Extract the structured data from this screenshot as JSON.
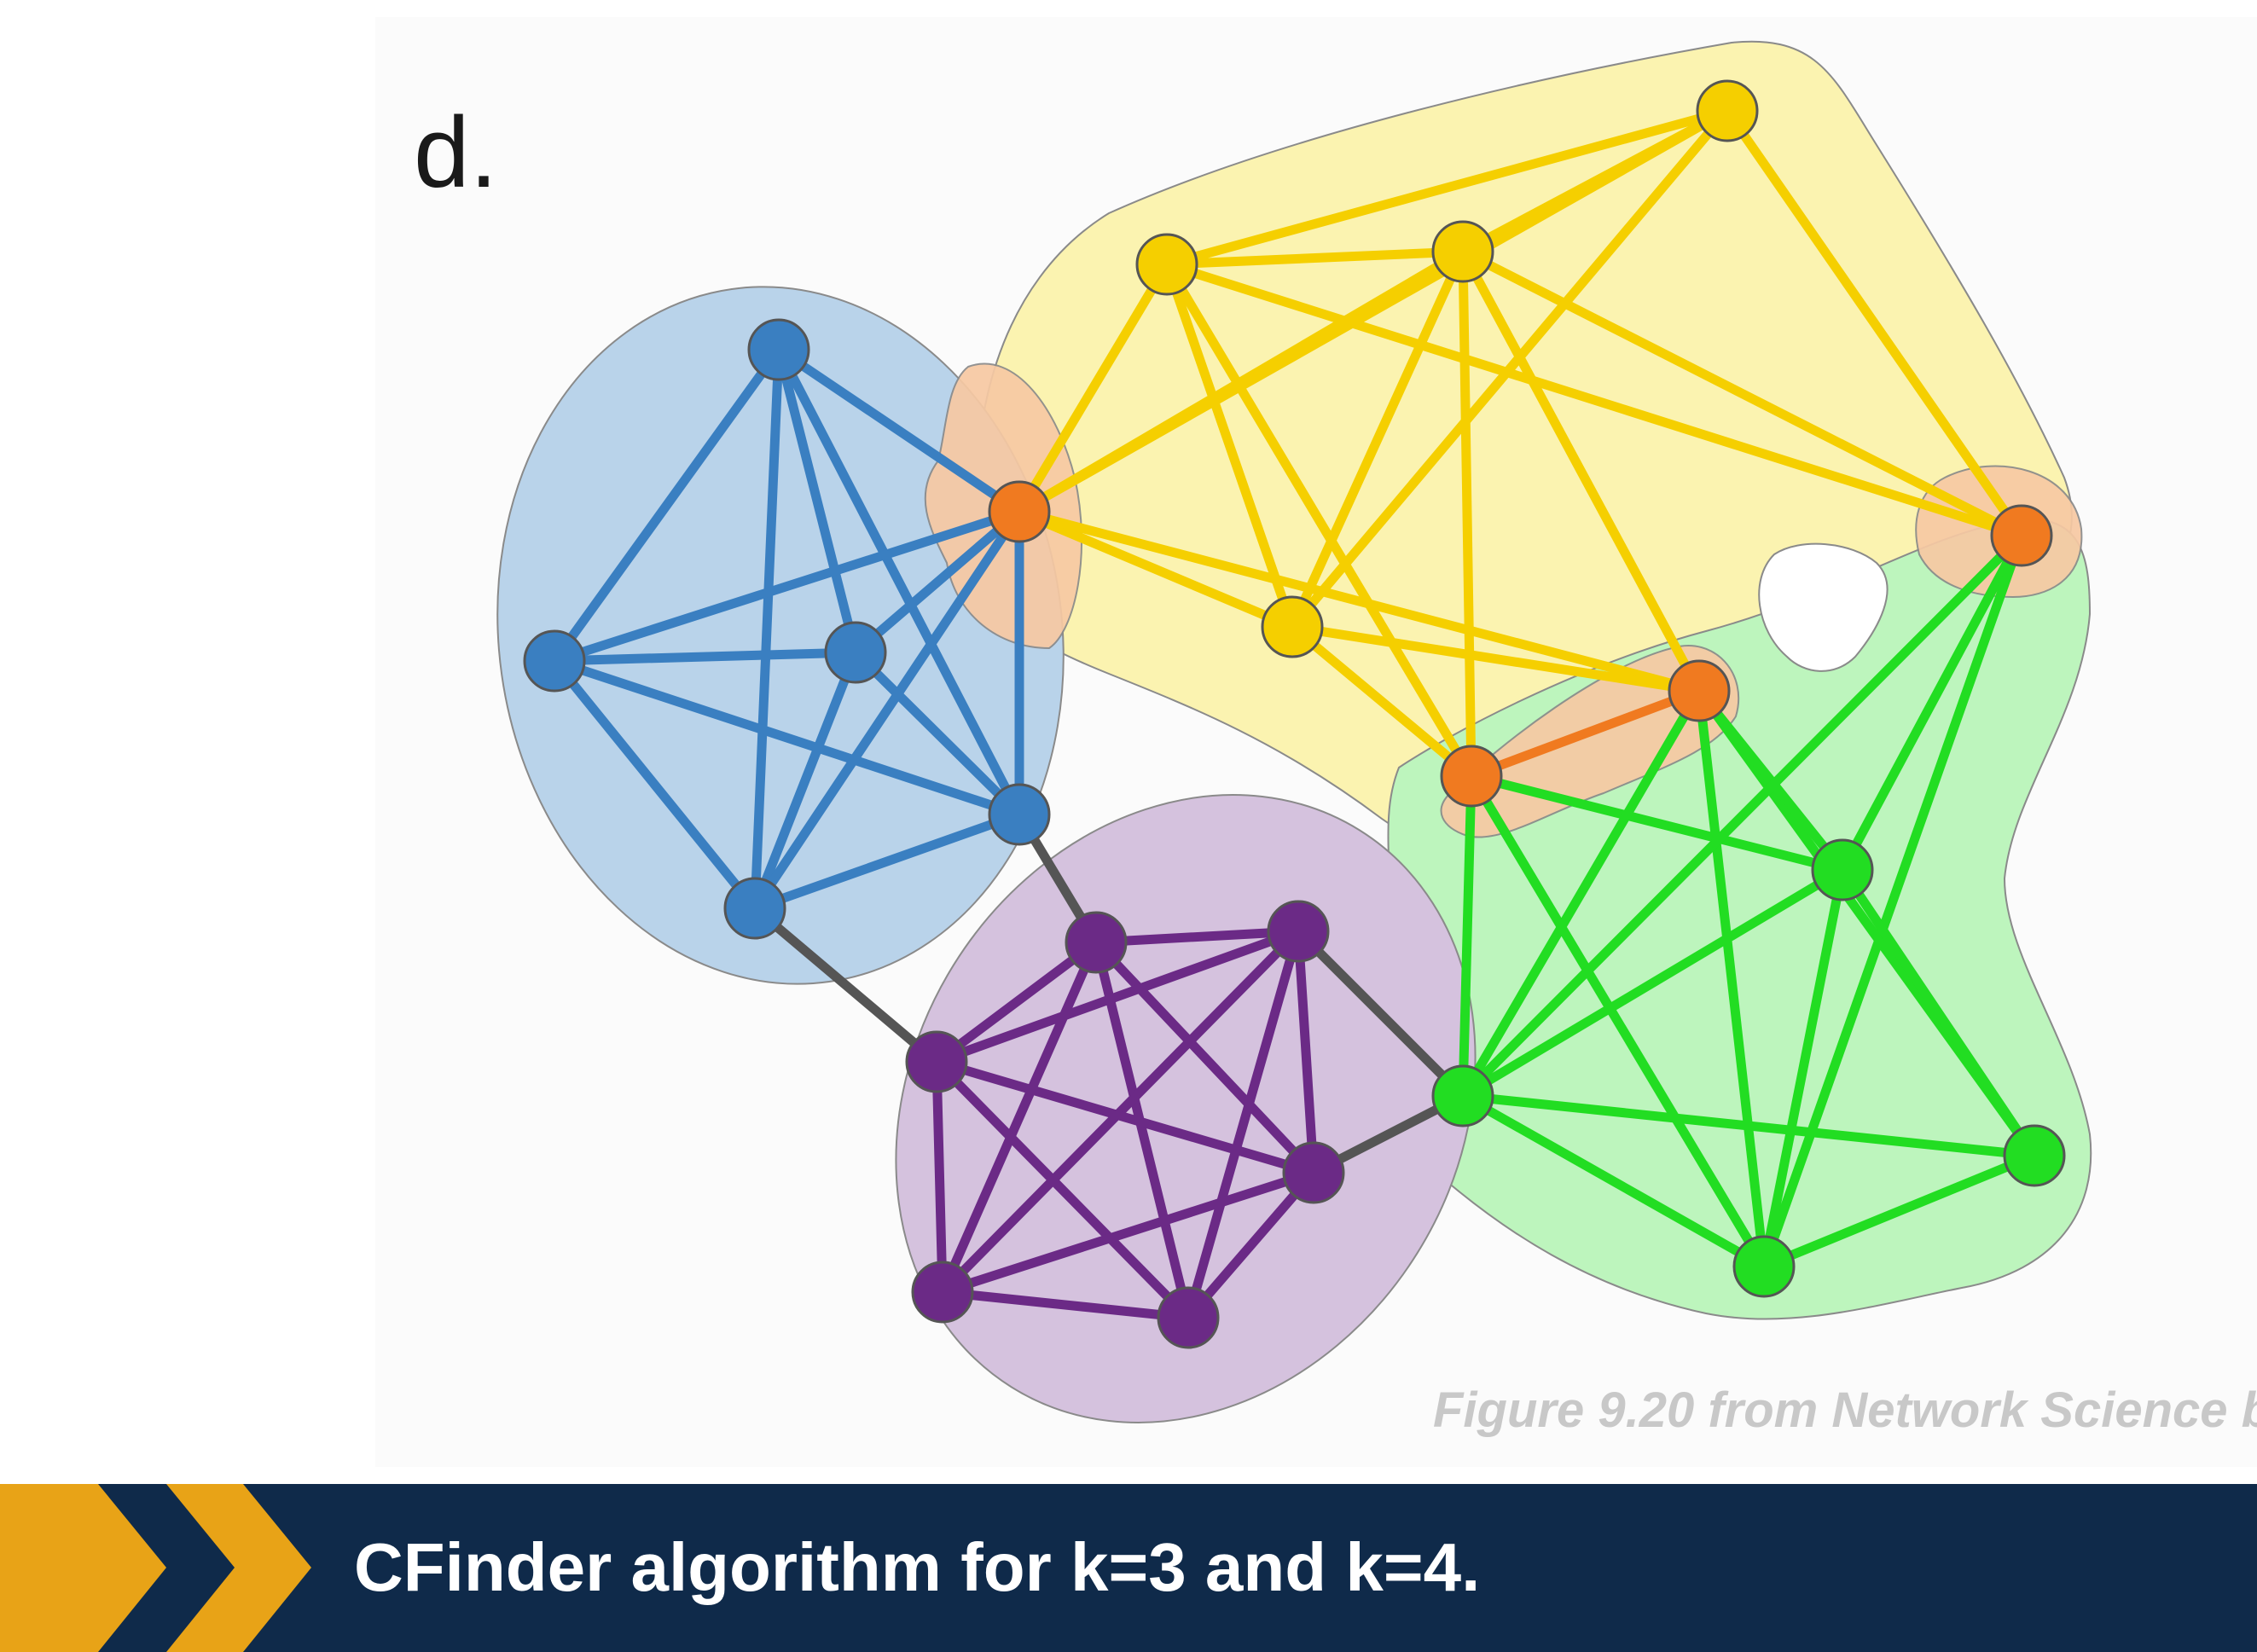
{
  "panel_label": "d.",
  "figure_credit": "Figure 9.20 from Network Science b",
  "caption": "CFinder algorithm for k=3 and k=4.",
  "colors": {
    "blue": "#3a7fc1",
    "blue_fill": "#b9d3ea",
    "yellow": "#f5cf00",
    "yellow_fill": "#fbf3b0",
    "green": "#22dd22",
    "green_fill": "#bdf5bd",
    "purple": "#6b2a86",
    "purple_fill": "#d5c2de",
    "orange": "#f07a20",
    "orange_fill": "#f7c9a3",
    "bridge": "#555555",
    "caption_bar": "#0f2a4a",
    "chevron": "#e8a317"
  }
}
